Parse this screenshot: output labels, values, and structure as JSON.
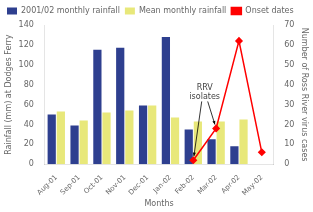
{
  "chart_data": {
    "type": "bar",
    "categories": [
      "Aug-01",
      "Sep-01",
      "Oct-01",
      "Nov-01",
      "Dec-01",
      "Jan-02",
      "Feb-02",
      "Mar-02",
      "Apr-02",
      "May-02"
    ],
    "series": [
      {
        "name": "2001/02 monthly rainfall",
        "color": "#2e3f8f",
        "values": [
          50,
          39,
          115,
          117,
          59,
          128,
          35,
          25,
          18,
          0
        ]
      },
      {
        "name": "Mean monthly rainfall",
        "color": "#e8e87a",
        "values": [
          53,
          44,
          52,
          54,
          59,
          47,
          43,
          43,
          45,
          0
        ]
      },
      {
        "name": "Onset dates",
        "type": "line",
        "axis": "y2",
        "color": "#ff0000",
        "marker": "diamond",
        "line_style": "solid",
        "values": [
          null,
          null,
          null,
          null,
          null,
          null,
          2,
          18,
          62,
          6
        ]
      }
    ],
    "xlabel": "Months",
    "ylabel": "Rainfall (mm) at Dodges Ferry",
    "y2label": "Number of Ross River virus cases",
    "ylim": [
      0,
      140
    ],
    "yticks": [
      0,
      20,
      40,
      60,
      80,
      100,
      120,
      140
    ],
    "y2lim": [
      0,
      70
    ],
    "y2ticks": [
      0,
      10,
      20,
      30,
      40,
      50,
      60,
      70
    ],
    "annotations": [
      {
        "text": "RRV\nisolates"
      }
    ],
    "legend": "upper left",
    "grid": false
  }
}
